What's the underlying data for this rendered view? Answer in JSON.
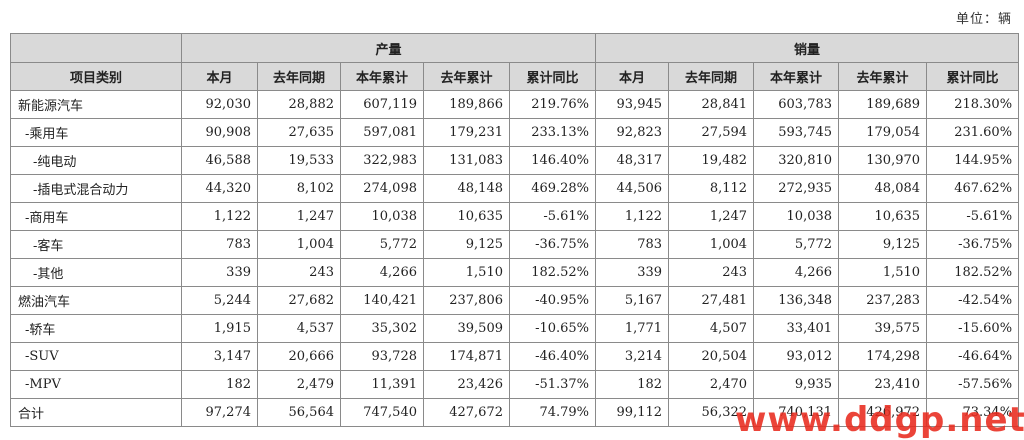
{
  "unit_label": "单位：辆",
  "header": {
    "category_label": "项目类别",
    "production_label": "产量",
    "sales_label": "销量",
    "columns": [
      "本月",
      "去年同期",
      "本年累计",
      "去年累计",
      "累计同比"
    ]
  },
  "rows": [
    {
      "label": "新能源汽车",
      "indent": 0,
      "production": [
        "92,030",
        "28,882",
        "607,119",
        "189,866",
        "219.76%"
      ],
      "sales": [
        "93,945",
        "28,841",
        "603,783",
        "189,689",
        "218.30%"
      ]
    },
    {
      "label": "-乘用车",
      "indent": 1,
      "production": [
        "90,908",
        "27,635",
        "597,081",
        "179,231",
        "233.13%"
      ],
      "sales": [
        "92,823",
        "27,594",
        "593,745",
        "179,054",
        "231.60%"
      ]
    },
    {
      "label": "-纯电动",
      "indent": 2,
      "production": [
        "46,588",
        "19,533",
        "322,983",
        "131,083",
        "146.40%"
      ],
      "sales": [
        "48,317",
        "19,482",
        "320,810",
        "130,970",
        "144.95%"
      ]
    },
    {
      "label": "-插电式混合动力",
      "indent": 2,
      "production": [
        "44,320",
        "8,102",
        "274,098",
        "48,148",
        "469.28%"
      ],
      "sales": [
        "44,506",
        "8,112",
        "272,935",
        "48,084",
        "467.62%"
      ]
    },
    {
      "label": "-商用车",
      "indent": 1,
      "production": [
        "1,122",
        "1,247",
        "10,038",
        "10,635",
        "-5.61%"
      ],
      "sales": [
        "1,122",
        "1,247",
        "10,038",
        "10,635",
        "-5.61%"
      ]
    },
    {
      "label": "-客车",
      "indent": 2,
      "production": [
        "783",
        "1,004",
        "5,772",
        "9,125",
        "-36.75%"
      ],
      "sales": [
        "783",
        "1,004",
        "5,772",
        "9,125",
        "-36.75%"
      ]
    },
    {
      "label": "-其他",
      "indent": 2,
      "production": [
        "339",
        "243",
        "4,266",
        "1,510",
        "182.52%"
      ],
      "sales": [
        "339",
        "243",
        "4,266",
        "1,510",
        "182.52%"
      ]
    },
    {
      "label": "燃油汽车",
      "indent": 0,
      "production": [
        "5,244",
        "27,682",
        "140,421",
        "237,806",
        "-40.95%"
      ],
      "sales": [
        "5,167",
        "27,481",
        "136,348",
        "237,283",
        "-42.54%"
      ]
    },
    {
      "label": "-轿车",
      "indent": 1,
      "production": [
        "1,915",
        "4,537",
        "35,302",
        "39,509",
        "-10.65%"
      ],
      "sales": [
        "1,771",
        "4,507",
        "33,401",
        "39,575",
        "-15.60%"
      ]
    },
    {
      "label": "-SUV",
      "indent": 1,
      "production": [
        "3,147",
        "20,666",
        "93,728",
        "174,871",
        "-46.40%"
      ],
      "sales": [
        "3,214",
        "20,504",
        "93,012",
        "174,298",
        "-46.64%"
      ]
    },
    {
      "label": "-MPV",
      "indent": 1,
      "production": [
        "182",
        "2,479",
        "11,391",
        "23,426",
        "-51.37%"
      ],
      "sales": [
        "182",
        "2,470",
        "9,935",
        "23,410",
        "-57.56%"
      ]
    },
    {
      "label": "合计",
      "indent": 0,
      "production": [
        "97,274",
        "56,564",
        "747,540",
        "427,672",
        "74.79%"
      ],
      "sales": [
        "99,112",
        "56,322",
        "740,131",
        "426,972",
        "73.34%"
      ]
    }
  ],
  "watermark": {
    "text": "www.ddgp.net",
    "color": "#e82a1e"
  },
  "colors": {
    "header_bg": "#d9d9d9",
    "border": "#8a8a8a"
  }
}
